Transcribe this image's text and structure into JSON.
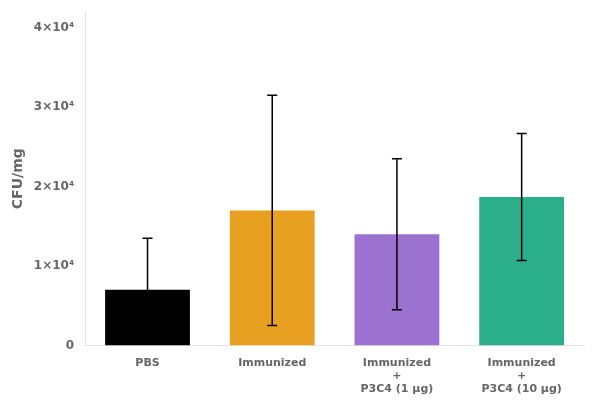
{
  "chart_data": {
    "type": "bar",
    "ylabel": "CFU/mg",
    "categories": [
      "PBS",
      "Immunized",
      "Immunized\n+\nP3C4 (1 μg)",
      "Immunized\n+\nP3C4 (10 μg)"
    ],
    "values": [
      7000,
      17000,
      14000,
      18700
    ],
    "errors": [
      6500,
      14500,
      9500,
      8000
    ],
    "colors": [
      "#000000",
      "#E8A020",
      "#9B72CF",
      "#2BAF8A"
    ],
    "ylim": [
      0,
      42000
    ],
    "yticks": [
      0,
      {
        "value": 10000,
        "label": "1×10⁴"
      },
      {
        "value": 20000,
        "label": "2×10⁴"
      },
      {
        "value": 30000,
        "label": "3×10⁴"
      },
      {
        "value": 40000,
        "label": "4×10⁴"
      }
    ],
    "grid": false
  }
}
